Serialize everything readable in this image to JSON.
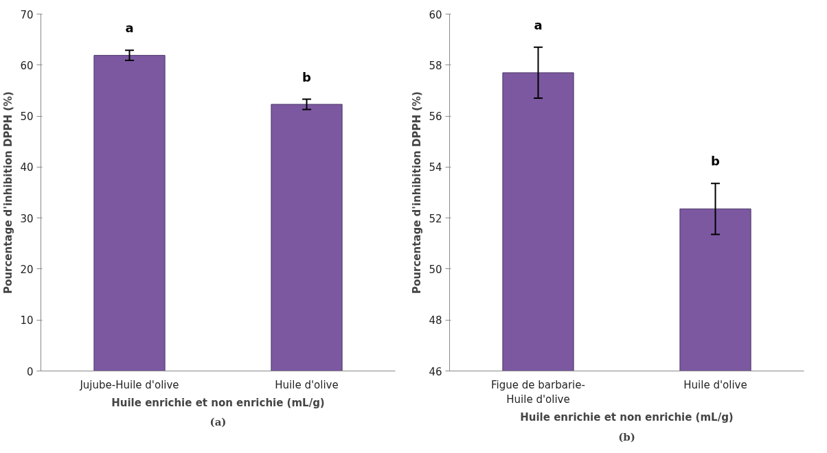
{
  "chart_data": [
    {
      "type": "bar",
      "categories": [
        "Jujube-Huile d'olive",
        "Huile d'olive"
      ],
      "values": [
        61.9,
        52.3
      ],
      "errors": [
        1.0,
        1.0
      ],
      "color": "#7b58a0",
      "xlabel": "Huile enrichie et non enrichie (mL/g)",
      "ylabel": "Pourcentage d'inhibition DPPH (%)",
      "ylim": [
        0,
        70
      ],
      "yticks": [
        0,
        10,
        20,
        30,
        40,
        50,
        60,
        70
      ],
      "grid": false,
      "annotations": [
        "a",
        "b",
        "(a)"
      ]
    },
    {
      "type": "bar",
      "categories": [
        "Figue de barbarie-Huile d'olive",
        "Huile d'olive"
      ],
      "values": [
        57.7,
        52.36
      ],
      "errors": [
        1.0,
        1.0
      ],
      "color": "#7b58a0",
      "xlabel": "Huile enrichie et non enrichie (mL/g)",
      "ylabel": "Pourcentage d'inhibition DPPH (%)",
      "ylim": [
        46,
        60
      ],
      "yticks": [
        46,
        48,
        50,
        52,
        54,
        56,
        58,
        60
      ],
      "grid": false,
      "annotations": [
        "a",
        "b",
        "(b)"
      ]
    }
  ]
}
